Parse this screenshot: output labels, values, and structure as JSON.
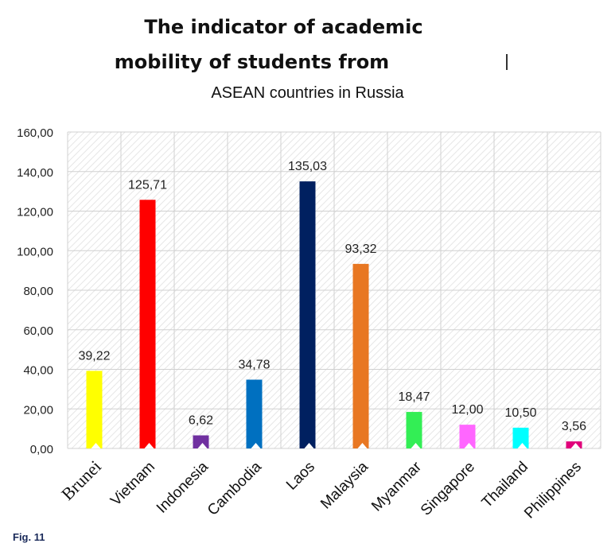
{
  "title_lines": [
    "The indicator of academic",
    "mobility of students from",
    "ASEAN countries in Russia"
  ],
  "caption": "Fig. 11",
  "colors": {
    "grid": "#d0d0d0",
    "hatch": "#e4e4e4",
    "axis_text": "#222222"
  },
  "chart_data": {
    "type": "bar",
    "title": "The indicator of academic mobility of students from ASEAN countries in Russia",
    "xlabel": "",
    "ylabel": "",
    "ylim": [
      0,
      160
    ],
    "yticks": [
      "0,00",
      "20,00",
      "40,00",
      "60,00",
      "80,00",
      "100,00",
      "120,00",
      "140,00",
      "160,00"
    ],
    "categories": [
      "Brunei",
      "Vietnam",
      "Indonesia",
      "Cambodia",
      "Laos",
      "Malaysia",
      "Myanmar",
      "Singapore",
      "Thailand",
      "Philippines"
    ],
    "values": [
      39.22,
      125.71,
      6.62,
      34.78,
      135.03,
      93.32,
      18.47,
      12.0,
      10.5,
      3.56
    ],
    "value_labels": [
      "39,22",
      "125,71",
      "6,62",
      "34,78",
      "135,03",
      "93,32",
      "18,47",
      "12,00",
      "10,50",
      "3,56"
    ],
    "bar_colors": [
      "#ffff00",
      "#ff0000",
      "#7030a0",
      "#0070c0",
      "#002060",
      "#e87722",
      "#33ee55",
      "#ff66ff",
      "#00ffff",
      "#e0007a"
    ],
    "grid": true,
    "legend": "none"
  }
}
